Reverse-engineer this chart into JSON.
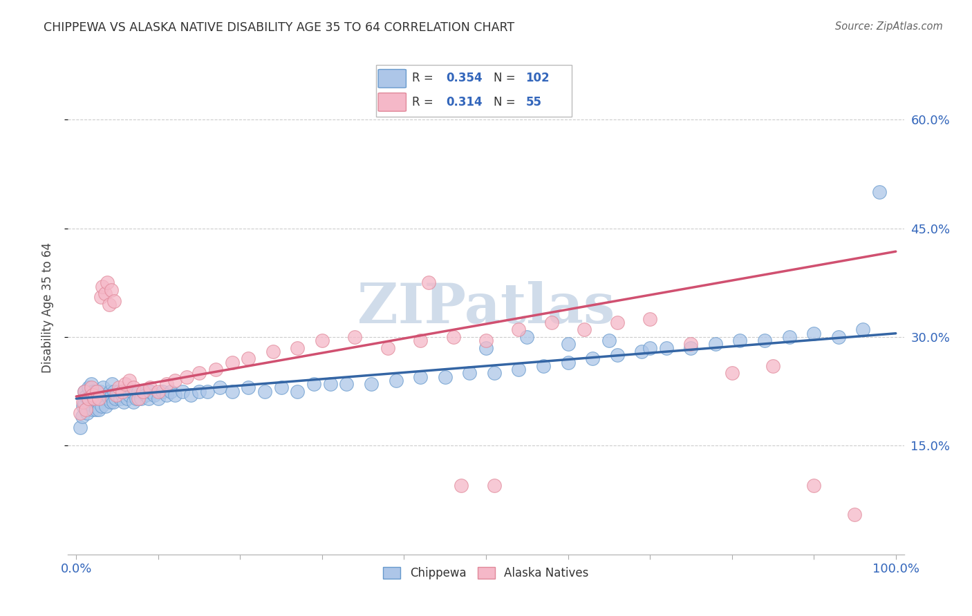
{
  "title": "CHIPPEWA VS ALASKA NATIVE DISABILITY AGE 35 TO 64 CORRELATION CHART",
  "source": "Source: ZipAtlas.com",
  "ylabel": "Disability Age 35 to 64",
  "ytick_vals": [
    0.15,
    0.3,
    0.45,
    0.6
  ],
  "xlim": [
    -0.01,
    1.01
  ],
  "ylim": [
    0.0,
    0.68
  ],
  "legend_label_blue": "Chippewa",
  "legend_label_pink": "Alaska Natives",
  "blue_face_color": "#adc6e8",
  "blue_edge_color": "#6699cc",
  "pink_face_color": "#f5b8c8",
  "pink_edge_color": "#e08899",
  "blue_line_color": "#3465a4",
  "pink_line_color": "#d05070",
  "legend_text_color": "#3366bb",
  "title_color": "#333333",
  "source_color": "#666666",
  "grid_color": "#cccccc",
  "watermark_color": "#d0dcea",
  "blue_trend_start_y": 0.215,
  "blue_trend_end_y": 0.305,
  "pink_trend_start_y": 0.218,
  "pink_trend_end_y": 0.418,
  "chippewa_x": [
    0.005,
    0.007,
    0.008,
    0.01,
    0.01,
    0.012,
    0.013,
    0.015,
    0.015,
    0.016,
    0.018,
    0.018,
    0.019,
    0.02,
    0.02,
    0.021,
    0.022,
    0.023,
    0.024,
    0.025,
    0.026,
    0.027,
    0.028,
    0.029,
    0.03,
    0.031,
    0.032,
    0.033,
    0.035,
    0.036,
    0.038,
    0.04,
    0.041,
    0.042,
    0.043,
    0.044,
    0.045,
    0.046,
    0.048,
    0.05,
    0.052,
    0.054,
    0.056,
    0.058,
    0.06,
    0.062,
    0.065,
    0.068,
    0.07,
    0.073,
    0.076,
    0.079,
    0.082,
    0.085,
    0.088,
    0.09,
    0.095,
    0.1,
    0.105,
    0.11,
    0.115,
    0.12,
    0.13,
    0.14,
    0.15,
    0.16,
    0.175,
    0.19,
    0.21,
    0.23,
    0.25,
    0.27,
    0.29,
    0.31,
    0.33,
    0.36,
    0.39,
    0.42,
    0.45,
    0.48,
    0.51,
    0.54,
    0.57,
    0.6,
    0.63,
    0.66,
    0.69,
    0.72,
    0.75,
    0.78,
    0.81,
    0.84,
    0.87,
    0.9,
    0.93,
    0.96,
    0.6,
    0.5,
    0.55,
    0.65,
    0.7,
    0.98
  ],
  "chippewa_y": [
    0.175,
    0.19,
    0.205,
    0.21,
    0.225,
    0.218,
    0.195,
    0.215,
    0.23,
    0.208,
    0.22,
    0.235,
    0.215,
    0.2,
    0.225,
    0.215,
    0.21,
    0.225,
    0.2,
    0.215,
    0.225,
    0.21,
    0.2,
    0.225,
    0.215,
    0.205,
    0.22,
    0.23,
    0.215,
    0.205,
    0.22,
    0.215,
    0.225,
    0.21,
    0.218,
    0.235,
    0.21,
    0.225,
    0.215,
    0.22,
    0.225,
    0.215,
    0.22,
    0.21,
    0.225,
    0.215,
    0.22,
    0.225,
    0.21,
    0.215,
    0.225,
    0.215,
    0.225,
    0.22,
    0.215,
    0.225,
    0.22,
    0.215,
    0.225,
    0.22,
    0.225,
    0.22,
    0.225,
    0.22,
    0.225,
    0.225,
    0.23,
    0.225,
    0.23,
    0.225,
    0.23,
    0.225,
    0.235,
    0.235,
    0.235,
    0.235,
    0.24,
    0.245,
    0.245,
    0.25,
    0.25,
    0.255,
    0.26,
    0.265,
    0.27,
    0.275,
    0.28,
    0.285,
    0.285,
    0.29,
    0.295,
    0.295,
    0.3,
    0.305,
    0.3,
    0.31,
    0.29,
    0.285,
    0.3,
    0.295,
    0.285,
    0.5
  ],
  "alaska_x": [
    0.005,
    0.008,
    0.01,
    0.012,
    0.015,
    0.018,
    0.02,
    0.022,
    0.025,
    0.028,
    0.03,
    0.032,
    0.035,
    0.038,
    0.04,
    0.043,
    0.046,
    0.049,
    0.052,
    0.056,
    0.06,
    0.065,
    0.07,
    0.076,
    0.082,
    0.09,
    0.1,
    0.11,
    0.12,
    0.135,
    0.15,
    0.17,
    0.19,
    0.21,
    0.24,
    0.27,
    0.3,
    0.34,
    0.38,
    0.42,
    0.46,
    0.5,
    0.54,
    0.58,
    0.62,
    0.66,
    0.7,
    0.75,
    0.8,
    0.85,
    0.9,
    0.95,
    0.43,
    0.47,
    0.51
  ],
  "alaska_y": [
    0.195,
    0.21,
    0.225,
    0.2,
    0.215,
    0.23,
    0.22,
    0.215,
    0.225,
    0.215,
    0.355,
    0.37,
    0.36,
    0.375,
    0.345,
    0.365,
    0.35,
    0.22,
    0.23,
    0.225,
    0.235,
    0.24,
    0.23,
    0.215,
    0.225,
    0.23,
    0.225,
    0.235,
    0.24,
    0.245,
    0.25,
    0.255,
    0.265,
    0.27,
    0.28,
    0.285,
    0.295,
    0.3,
    0.285,
    0.295,
    0.3,
    0.295,
    0.31,
    0.32,
    0.31,
    0.32,
    0.325,
    0.29,
    0.25,
    0.26,
    0.095,
    0.055,
    0.375,
    0.095,
    0.095
  ]
}
